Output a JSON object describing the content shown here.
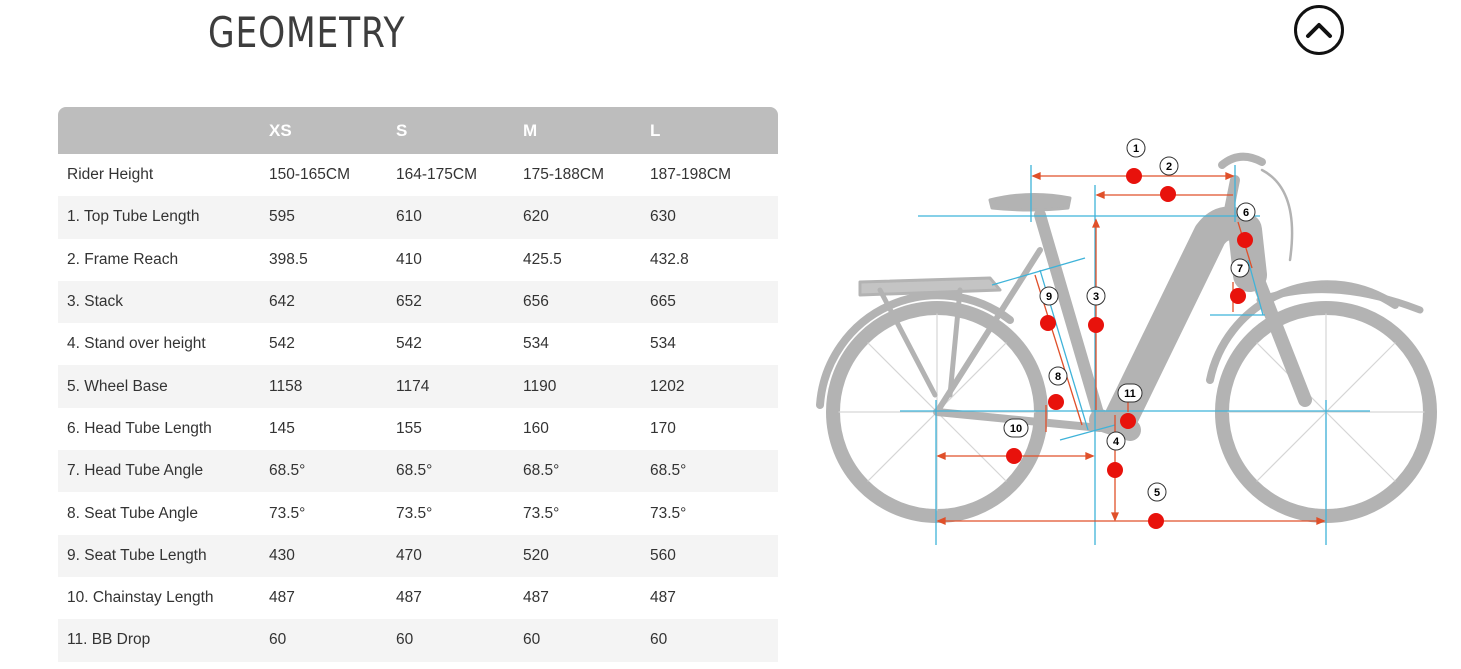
{
  "page": {
    "title": "GEOMETRY"
  },
  "scroll_top": {
    "icon": "chevron-up-icon"
  },
  "table": {
    "headers": [
      "",
      "XS",
      "S",
      "M",
      "L"
    ],
    "rows": [
      [
        "Rider Height",
        "150-165CM",
        "164-175CM",
        "175-188CM",
        "187-198CM"
      ],
      [
        "1. Top Tube Length",
        "595",
        "610",
        "620",
        "630"
      ],
      [
        "2. Frame Reach",
        "398.5",
        "410",
        "425.5",
        "432.8"
      ],
      [
        "3. Stack",
        "642",
        "652",
        "656",
        "665"
      ],
      [
        "4. Stand over height",
        "542",
        "542",
        "534",
        "534"
      ],
      [
        "5. Wheel Base",
        "1158",
        "1174",
        "1190",
        "1202"
      ],
      [
        "6. Head Tube Length",
        "145",
        "155",
        "160",
        "170"
      ],
      [
        "7. Head Tube Angle",
        "68.5°",
        "68.5°",
        "68.5°",
        "68.5°"
      ],
      [
        "8. Seat Tube Angle",
        "73.5°",
        "73.5°",
        "73.5°",
        "73.5°"
      ],
      [
        "9. Seat Tube Length",
        "430",
        "470",
        "520",
        "560"
      ],
      [
        "10. Chainstay Length",
        "487",
        "487",
        "487",
        "487"
      ],
      [
        "11. BB Drop",
        "60",
        "60",
        "60",
        "60"
      ]
    ]
  },
  "diagram": {
    "markers": [
      "1",
      "2",
      "3",
      "4",
      "5",
      "6",
      "7",
      "8",
      "9",
      "10",
      "11"
    ],
    "colors": {
      "frame": "#b3b3b3",
      "measure": "#e0502a",
      "guide": "#3fb3d9",
      "dot": "#e8120c"
    }
  }
}
